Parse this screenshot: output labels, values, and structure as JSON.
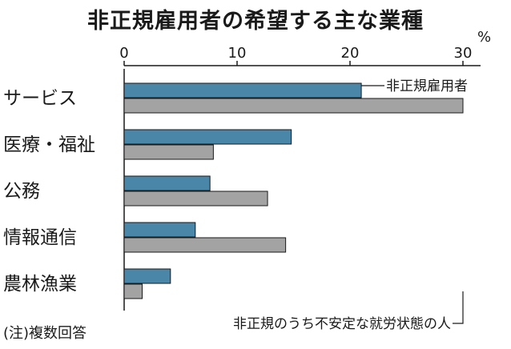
{
  "title": "非正規雇用者の希望する主な業種",
  "unit": "%",
  "note": "(注)複数回答",
  "colors": {
    "series1": "#4a86a8",
    "series2": "#a3a3a3",
    "stroke": "#1a1a1a"
  },
  "chart_data": {
    "type": "bar",
    "orientation": "horizontal",
    "title": "非正規雇用者の希望する主な業種",
    "categories": [
      "サービス",
      "医療・福祉",
      "公務",
      "情報通信",
      "農林漁業"
    ],
    "series": [
      {
        "name": "非正規雇用者",
        "values": [
          21.0,
          14.8,
          7.6,
          6.3,
          4.1
        ]
      },
      {
        "name": "非正規のうち不安定な就労状態の人",
        "values": [
          30.0,
          7.9,
          12.7,
          14.3,
          1.6
        ]
      }
    ],
    "xlim": [
      0,
      30
    ],
    "xticks": [
      "0",
      "10",
      "20",
      "30"
    ],
    "xlabel": "%",
    "grid": false,
    "legend_placement": "annotations"
  }
}
